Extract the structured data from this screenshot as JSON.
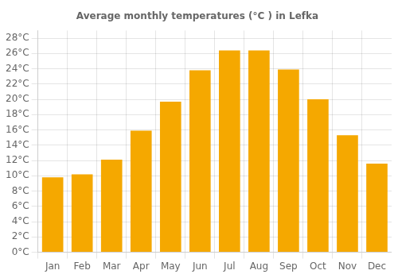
{
  "chart_data": {
    "type": "bar",
    "title": "Average monthly temperatures (°C ) in Lefka",
    "categories": [
      "Jan",
      "Feb",
      "Mar",
      "Apr",
      "May",
      "Jun",
      "Jul",
      "Aug",
      "Sep",
      "Oct",
      "Nov",
      "Dec"
    ],
    "values": [
      9.8,
      10.2,
      12.1,
      15.9,
      19.7,
      23.8,
      26.4,
      26.4,
      23.9,
      20.0,
      15.3,
      11.6
    ],
    "color": "#F5A800",
    "ylim": [
      0,
      29
    ],
    "yticks": [
      {
        "value": 0,
        "label": "0°C"
      },
      {
        "value": 2,
        "label": "2°C"
      },
      {
        "value": 4,
        "label": "4°C"
      },
      {
        "value": 6,
        "label": "6°C"
      },
      {
        "value": 8,
        "label": "8°C"
      },
      {
        "value": 10,
        "label": "10°C"
      },
      {
        "value": 12,
        "label": "12°C"
      },
      {
        "value": 14,
        "label": "14°C"
      },
      {
        "value": 16,
        "label": "16°C"
      },
      {
        "value": 18,
        "label": "18°C"
      },
      {
        "value": 20,
        "label": "20°C"
      },
      {
        "value": 22,
        "label": "22°C"
      },
      {
        "value": 24,
        "label": "24°C"
      },
      {
        "value": 26,
        "label": "26°C"
      },
      {
        "value": 28,
        "label": "28°C"
      }
    ],
    "grid": true
  }
}
